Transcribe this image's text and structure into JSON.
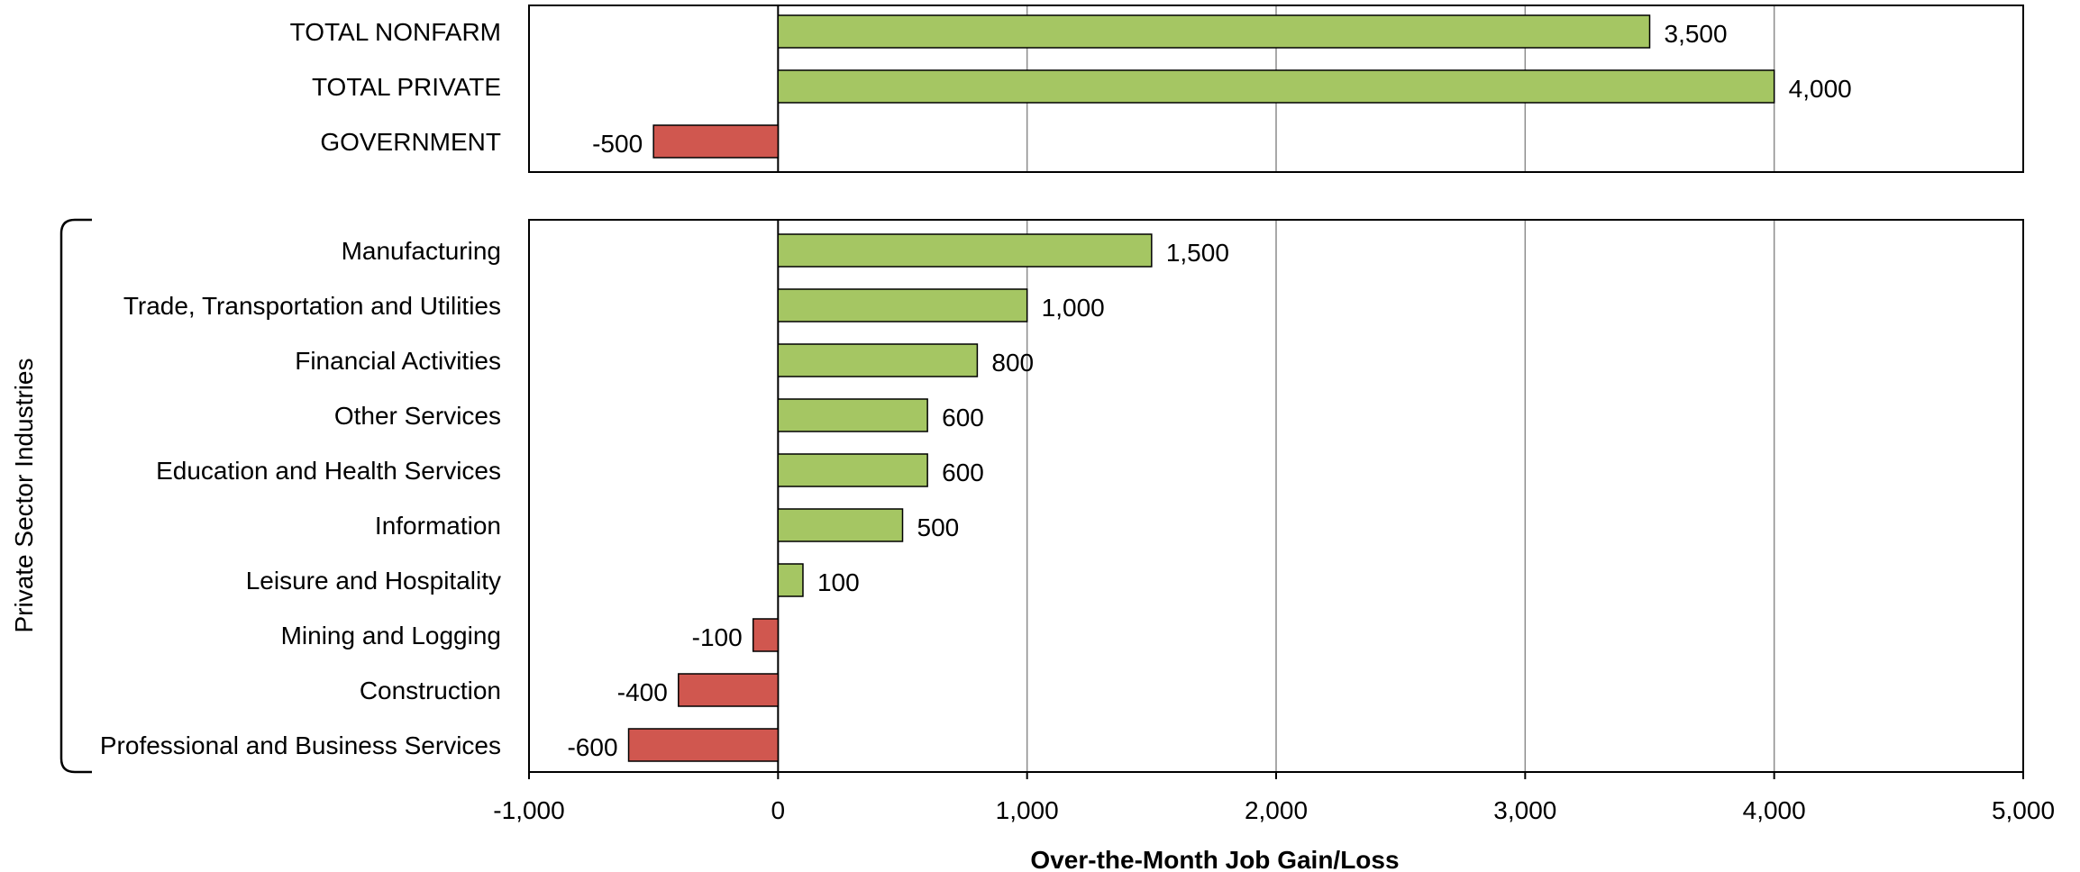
{
  "chart_data": {
    "type": "bar",
    "orientation": "horizontal",
    "xlabel": "Over-the-Month Job Gain/Loss",
    "xlim": [
      -1000,
      5000
    ],
    "xticks": [
      -1000,
      0,
      1000,
      2000,
      3000,
      4000,
      5000
    ],
    "xtick_labels": [
      "-1,000",
      "0",
      "1,000",
      "2,000",
      "3,000",
      "4,000",
      "5,000"
    ],
    "grid": "vertical",
    "colors": {
      "positive": "#a5c663",
      "negative": "#d0574f"
    },
    "panels": [
      {
        "name": "totals",
        "categories": [
          "TOTAL NONFARM",
          "TOTAL PRIVATE",
          "GOVERNMENT"
        ],
        "values": [
          3500,
          4000,
          -500
        ],
        "value_labels": [
          "3,500",
          "4,000",
          "-500"
        ]
      },
      {
        "name": "private-sector",
        "group_label": "Private Sector Industries",
        "categories": [
          "Manufacturing",
          "Trade, Transportation and Utilities",
          "Financial Activities",
          "Other Services",
          "Education and Health Services",
          "Information",
          "Leisure and Hospitality",
          "Mining and Logging",
          "Construction",
          "Professional and Business Services"
        ],
        "values": [
          1500,
          1000,
          800,
          600,
          600,
          500,
          100,
          -100,
          -400,
          -600
        ],
        "value_labels": [
          "1,500",
          "1,000",
          "800",
          "600",
          "600",
          "500",
          "100",
          "-100",
          "-400",
          "-600"
        ]
      }
    ]
  }
}
